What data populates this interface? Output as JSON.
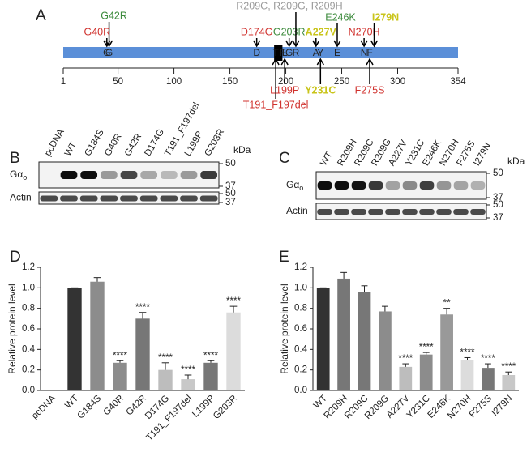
{
  "panel_a": {
    "letter": "A",
    "lim": [
      1,
      354
    ],
    "ticks": [
      1,
      50,
      100,
      150,
      200,
      250,
      300,
      354
    ],
    "deletion": [
      191,
      197
    ],
    "residue_letters": [
      {
        "residue": 40,
        "letter": "G"
      },
      {
        "residue": 42,
        "letter": "G"
      },
      {
        "residue": 174,
        "letter": "D"
      },
      {
        "residue": 191,
        "letter": "T"
      },
      {
        "residue": 197,
        "letter": "F"
      },
      {
        "residue": 199,
        "letter": "L"
      },
      {
        "residue": 203,
        "letter": "G"
      },
      {
        "residue": 209,
        "letter": "R"
      },
      {
        "residue": 227,
        "letter": "A"
      },
      {
        "residue": 231,
        "letter": "Y"
      },
      {
        "residue": 246,
        "letter": "E"
      },
      {
        "residue": 270,
        "letter": "N"
      },
      {
        "residue": 275,
        "letter": "F"
      }
    ],
    "mutations": [
      {
        "label": "G42R",
        "residue": 42,
        "side": "above",
        "color": "#3d8b3d"
      },
      {
        "label": "G40R",
        "residue": 40,
        "side": "above",
        "color": "#d0312d"
      },
      {
        "label": "D174G",
        "residue": 174,
        "side": "above",
        "color": "#d0312d"
      },
      {
        "label": "G203R",
        "residue": 203,
        "side": "above",
        "color": "#3d8b3d"
      },
      {
        "label": "R209C, R209G, R209H",
        "residue": 209,
        "side": "above",
        "color": "#9a9a9a"
      },
      {
        "label": "A227V",
        "residue": 227,
        "side": "above",
        "color": "#c9c41a"
      },
      {
        "label": "E246K",
        "residue": 246,
        "side": "above",
        "color": "#3d8b3d"
      },
      {
        "label": "N270H",
        "residue": 270,
        "side": "above",
        "color": "#d0312d"
      },
      {
        "label": "I279N",
        "residue": 279,
        "side": "above",
        "color": "#c9c41a"
      },
      {
        "label": "T191_F197del",
        "residue": 191,
        "side": "below",
        "color": "#d0312d"
      },
      {
        "label": "L199P",
        "residue": 199,
        "side": "below",
        "color": "#d0312d"
      },
      {
        "label": "Y231C",
        "residue": 231,
        "side": "below",
        "color": "#c9c41a"
      },
      {
        "label": "F275S",
        "residue": 275,
        "side": "below",
        "color": "#d0312d"
      }
    ]
  },
  "panel_b": {
    "letter": "B",
    "lanes": [
      "pcDNA",
      "WT",
      "G184S",
      "G40R",
      "G42R",
      "D174G",
      "T191_F197del",
      "L199P",
      "G203R"
    ],
    "row_main": "Gα",
    "row_sub": "o",
    "row_actin": "Actin",
    "kda": "kDa",
    "markers_g": [
      50,
      37
    ],
    "markers_actin": [
      50,
      37
    ]
  },
  "panel_c": {
    "letter": "C",
    "lanes": [
      "WT",
      "R209H",
      "R209C",
      "R209G",
      "A227V",
      "Y231C",
      "E246K",
      "N270H",
      "F275S",
      "I279N"
    ],
    "row_main": "Gα",
    "row_sub": "o",
    "row_actin": "Actin",
    "kda": "kDa",
    "markers_g": [
      50,
      37
    ],
    "markers_actin": [
      50,
      37
    ]
  },
  "chart_data": [
    {
      "type": "bar",
      "letter": "D",
      "ylabel": "Relative protein level",
      "categories": [
        "pcDNA",
        "WT",
        "G184S",
        "G40R",
        "G42R",
        "D174G",
        "T191_F197del",
        "L199P",
        "G203R"
      ],
      "values": [
        0,
        1.0,
        1.06,
        0.27,
        0.7,
        0.2,
        0.11,
        0.27,
        0.76
      ],
      "errors": [
        0,
        0,
        0.04,
        0.02,
        0.06,
        0.07,
        0.04,
        0.02,
        0.06
      ],
      "significance": [
        null,
        null,
        null,
        "****",
        "****",
        "****",
        "****",
        "****",
        "****"
      ],
      "colors": [
        "#333333",
        "#333333",
        "#8c8c8c",
        "#8c8c8c",
        "#777777",
        "#bdbdbd",
        "#c8c8c8",
        "#777777",
        "#dcdcdc"
      ],
      "ylim": [
        0,
        1.2
      ],
      "yticks": [
        {
          "value": 0,
          "label": "0.0"
        },
        0.2,
        0.4,
        0.6,
        0.8,
        {
          "value": 1,
          "label": "1.0"
        },
        1.2
      ]
    },
    {
      "type": "bar",
      "letter": "E",
      "ylabel": "Relative protein level",
      "categories": [
        "WT",
        "R209H",
        "R209C",
        "R209G",
        "A227V",
        "Y231C",
        "E246K",
        "N270H",
        "F275S",
        "I279N"
      ],
      "values": [
        1.0,
        1.09,
        0.96,
        0.77,
        0.23,
        0.35,
        0.74,
        0.3,
        0.22,
        0.15
      ],
      "errors": [
        0,
        0.06,
        0.06,
        0.05,
        0.03,
        0.02,
        0.06,
        0.02,
        0.04,
        0.03
      ],
      "significance": [
        null,
        null,
        null,
        null,
        "****",
        "****",
        "**",
        "****",
        "****",
        "****"
      ],
      "colors": [
        "#333333",
        "#777777",
        "#777777",
        "#8c8c8c",
        "#bdbdbd",
        "#8c8c8c",
        "#999999",
        "#dcdcdc",
        "#777777",
        "#c8c8c8"
      ],
      "ylim": [
        0,
        1.2
      ],
      "yticks": [
        {
          "value": 0,
          "label": "0.0"
        },
        0.2,
        0.4,
        0.6,
        0.8,
        {
          "value": 1,
          "label": "1.0"
        },
        1.2
      ]
    }
  ]
}
